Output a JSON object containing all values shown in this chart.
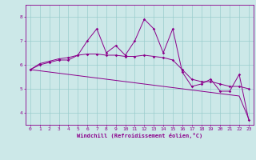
{
  "x": [
    0,
    1,
    2,
    3,
    4,
    5,
    6,
    7,
    8,
    9,
    10,
    11,
    12,
    13,
    14,
    15,
    16,
    17,
    18,
    19,
    20,
    21,
    22,
    23
  ],
  "windchill": [
    5.8,
    6.0,
    6.1,
    6.2,
    6.2,
    6.4,
    7.0,
    7.5,
    6.5,
    6.8,
    6.4,
    7.0,
    7.9,
    7.5,
    6.5,
    7.5,
    5.7,
    5.1,
    5.2,
    5.4,
    4.9,
    4.9,
    5.6,
    3.7
  ],
  "smooth1": [
    5.8,
    6.05,
    6.15,
    6.25,
    6.3,
    6.4,
    6.45,
    6.45,
    6.4,
    6.4,
    6.35,
    6.35,
    6.4,
    6.35,
    6.3,
    6.2,
    5.8,
    5.4,
    5.3,
    5.3,
    5.2,
    5.1,
    5.1,
    5.0
  ],
  "trend": [
    5.8,
    5.75,
    5.7,
    5.65,
    5.6,
    5.55,
    5.5,
    5.45,
    5.4,
    5.35,
    5.3,
    5.25,
    5.2,
    5.15,
    5.1,
    5.05,
    5.0,
    4.95,
    4.9,
    4.85,
    4.8,
    4.75,
    4.7,
    3.75
  ],
  "line_color": "#8b008b",
  "bg_color": "#cce8e8",
  "grid_color": "#99cccc",
  "xlabel": "Windchill (Refroidissement éolien,°C)",
  "ylim": [
    3.5,
    8.5
  ],
  "xlim": [
    -0.5,
    23.5
  ],
  "yticks": [
    4,
    5,
    6,
    7,
    8
  ],
  "xticks": [
    0,
    1,
    2,
    3,
    4,
    5,
    6,
    7,
    8,
    9,
    10,
    11,
    12,
    13,
    14,
    15,
    16,
    17,
    18,
    19,
    20,
    21,
    22,
    23
  ]
}
